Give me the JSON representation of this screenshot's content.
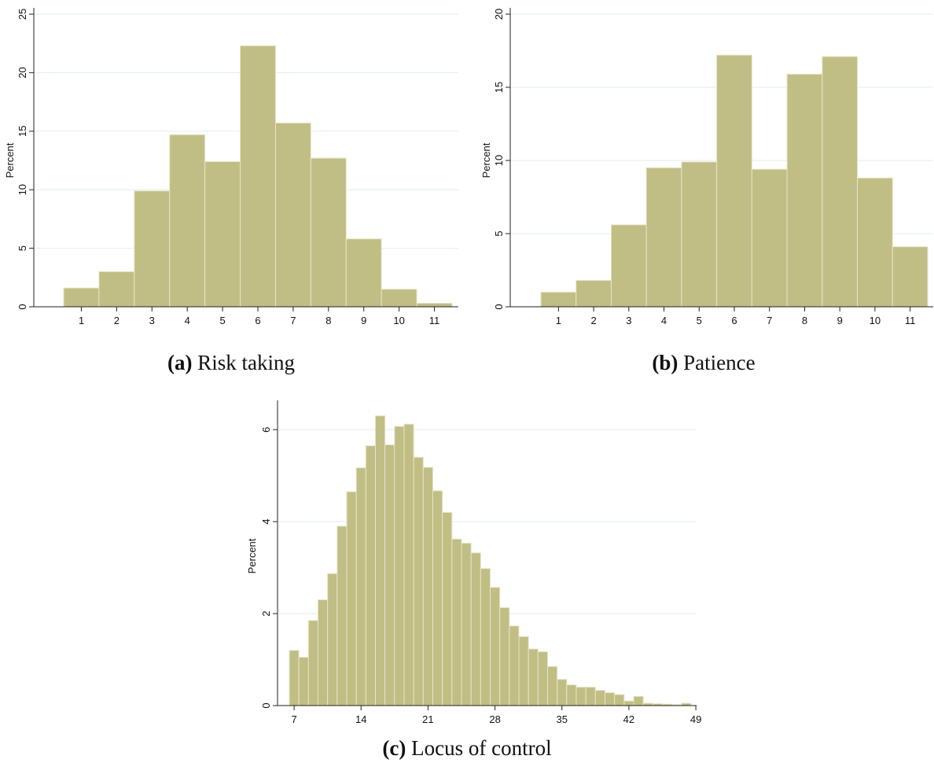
{
  "colors": {
    "bar_fill": "#C0BE84",
    "bar_stroke": "#E6E5C8",
    "grid": "#E2EEF0",
    "axis": "#222222"
  },
  "panels": {
    "a": {
      "caption_tag": "(a)",
      "caption_text": "Risk taking"
    },
    "b": {
      "caption_tag": "(b)",
      "caption_text": "Patience"
    },
    "c": {
      "caption_tag": "(c)",
      "caption_text": "Locus of control"
    }
  },
  "chart_data": [
    {
      "type": "bar",
      "title": "",
      "xlabel": "",
      "ylabel": "Percent",
      "categories": [
        "1",
        "2",
        "3",
        "4",
        "5",
        "6",
        "7",
        "8",
        "9",
        "10",
        "11"
      ],
      "values": [
        1.6,
        3.0,
        9.9,
        14.7,
        12.4,
        22.3,
        15.7,
        12.7,
        5.8,
        1.5,
        0.3
      ],
      "ylim": [
        0,
        25
      ],
      "yticks": [
        0,
        5,
        10,
        15,
        20,
        25
      ],
      "grid": true
    },
    {
      "type": "bar",
      "title": "",
      "xlabel": "",
      "ylabel": "Percent",
      "categories": [
        "1",
        "2",
        "3",
        "4",
        "5",
        "6",
        "7",
        "8",
        "9",
        "10",
        "11"
      ],
      "values": [
        1.0,
        1.8,
        5.6,
        9.5,
        9.9,
        17.2,
        9.4,
        15.9,
        17.1,
        8.8,
        4.1
      ],
      "ylim": [
        0,
        20
      ],
      "yticks": [
        0,
        5,
        10,
        15,
        20
      ],
      "grid": true
    },
    {
      "type": "bar",
      "title": "",
      "xlabel": "",
      "ylabel": "Percent",
      "x_start": 7,
      "bin_width": 1,
      "values": [
        1.2,
        1.05,
        1.85,
        2.3,
        2.87,
        3.9,
        4.65,
        5.17,
        5.65,
        6.3,
        5.67,
        6.07,
        6.12,
        5.4,
        5.18,
        4.67,
        4.2,
        3.62,
        3.53,
        3.32,
        2.98,
        2.57,
        2.13,
        1.73,
        1.5,
        1.23,
        1.17,
        0.85,
        0.57,
        0.45,
        0.4,
        0.4,
        0.33,
        0.28,
        0.24,
        0.1,
        0.2,
        0.05,
        0.04,
        0.03,
        0.02,
        0.05
      ],
      "xticks": [
        7,
        14,
        21,
        28,
        35,
        42,
        49
      ],
      "ylim": [
        0,
        6.5
      ],
      "yticks": [
        0,
        2,
        4,
        6
      ],
      "grid": true
    }
  ]
}
